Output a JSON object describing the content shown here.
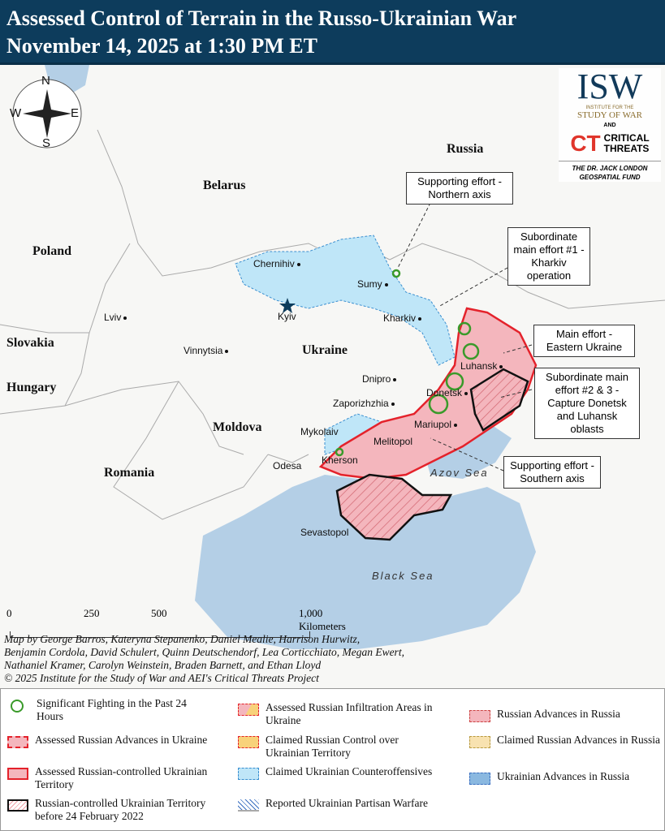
{
  "header": {
    "title_line1": "Assessed Control of Terrain in the Russo-Ukrainian War",
    "title_line2": "November 14, 2025 at 1:30 PM ET"
  },
  "logo": {
    "isw": "ISW",
    "isw_sub1": "INSTITUTE FOR THE",
    "isw_sub2": "STUDY OF WAR",
    "and": "AND",
    "ct": "CT",
    "ct_text1": "CRITICAL",
    "ct_text2": "THREATS",
    "fund1": "THE DR. JACK LONDON",
    "fund2": "GEOSPATIAL FUND"
  },
  "compass": {
    "n": "N",
    "s": "S",
    "e": "E",
    "w": "W"
  },
  "countries": {
    "russia": "Russia",
    "belarus": "Belarus",
    "poland": "Poland",
    "slovakia": "Slovakia",
    "hungary": "Hungary",
    "moldova": "Moldova",
    "romania": "Romania",
    "ukraine": "Ukraine"
  },
  "cities": {
    "chernihiv": "Chernihiv",
    "kyiv": "Kyiv",
    "sumy": "Sumy",
    "kharkiv": "Kharkiv",
    "lviv": "Lviv",
    "vinnytsia": "Vinnytsia",
    "dnipro": "Dnipro",
    "luhansk": "Luhansk",
    "donetsk": "Donetsk",
    "zaporizhzhia": "Zaporizhzhia",
    "mariupol": "Mariupol",
    "mykolaiv": "Mykolaiv",
    "melitopol": "Melitopol",
    "kherson": "Kherson",
    "odesa": "Odesa",
    "sevastopol": "Sevastopol"
  },
  "seas": {
    "azov": "Azov Sea",
    "black": "Black Sea"
  },
  "callouts": {
    "northern": "Supporting effort - Northern axis",
    "kharkiv": "Subordinate main effort #1 - Kharkiv operation",
    "eastern": "Main effort - Eastern Ukraine",
    "donetsk": "Subordinate main effort #2 & 3 - Capture Donetsk and Luhansk oblasts",
    "southern": "Supporting effort - Southern axis"
  },
  "scale": {
    "t0": "0",
    "t250": "250",
    "t500": "500",
    "t1000": "1,000 Kilometers"
  },
  "credits": {
    "line1": "Map by George Barros, Kateryna Stepanenko, Daniel Mealie, Harrison Hurwitz,",
    "line2": "Benjamin Cordola, David Schulert, Quinn Deutschendorf, Lea Corticchiato, Megan Ewert,",
    "line3": "Nathaniel Kramer, Carolyn Weinstein, Braden Barnett, and Ethan Lloyd",
    "line4": "© 2025 Institute for the Study of War and AEI's Critical Threats Project"
  },
  "legend": [
    "Significant Fighting in the Past 24 Hours",
    "Assessed Russian Advances in Ukraine",
    "Assessed Russian-controlled Ukrainian Territory",
    "Russian-controlled Ukrainian Territory before 24 February 2022",
    "Assessed Russian Infiltration Areas in Ukraine",
    "Claimed Russian Control over Ukrainian Territory",
    "Claimed Ukrainian Counteroffensives",
    "Reported Ukrainian Partisan Warfare",
    "Russian Advances in Russia",
    "Claimed Russian Advances in Russia",
    "Ukrainian Advances in Russia"
  ],
  "colors": {
    "header": "#0d3c5c",
    "russian_control": "#f4b6bd",
    "russian_border": "#e4222b",
    "ukrainian_counter": "#bfe6f8",
    "sea": "#b4cfe6",
    "fighting": "#3a9a2a"
  }
}
